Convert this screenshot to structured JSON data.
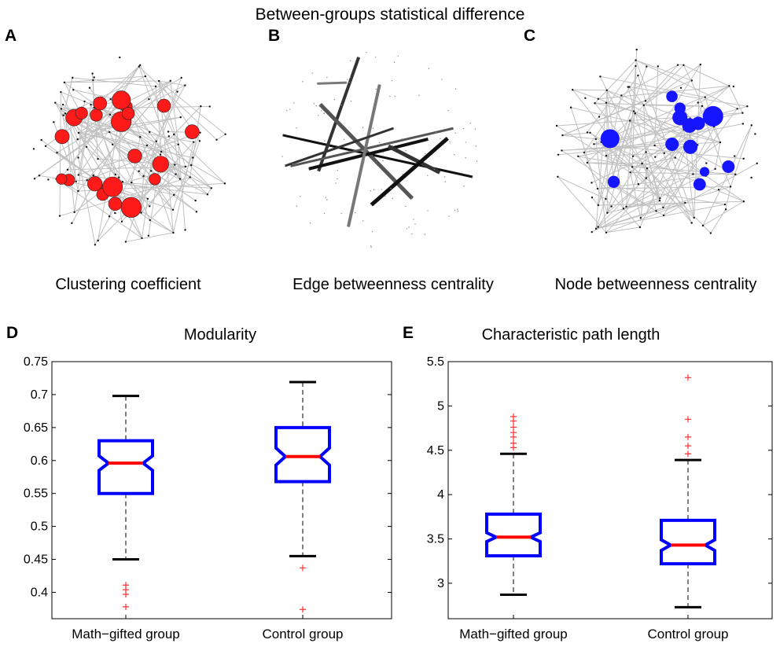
{
  "figure_title": "Between-groups statistical difference",
  "colors": {
    "edge_gray": "#c0c0c0",
    "node_black": "#111111",
    "node_red": "#ff1a1a",
    "node_blue": "#1515ff",
    "box_blue": "#0000ff",
    "median_red": "#ff0000",
    "whisker_black": "#000000",
    "outlier_red": "#ff3030"
  },
  "networks": [
    {
      "label": "A",
      "caption": "Clustering coefficient",
      "highlight_color": "red",
      "icon": "brain-network-graph-icon"
    },
    {
      "label": "B",
      "caption": "Edge betweenness centrality",
      "highlight_color": "dark-gray-edges",
      "icon": "brain-network-graph-icon"
    },
    {
      "label": "C",
      "caption": "Node betweenness centrality",
      "highlight_color": "blue",
      "icon": "brain-network-graph-icon"
    }
  ],
  "chart_data": [
    {
      "type": "boxplot",
      "panel": "D",
      "title": "Modularity",
      "xlabel": "",
      "ylabel": "",
      "ylim": [
        0.36,
        0.75
      ],
      "yticks": [
        "0.4",
        "0.45",
        "0.5",
        "0.55",
        "0.6",
        "0.65",
        "0.7",
        "0.75"
      ],
      "categories": [
        "Math−gifted group",
        "Control group"
      ],
      "boxes": [
        {
          "whisker_low": 0.45,
          "q1": 0.55,
          "median": 0.596,
          "q3": 0.63,
          "whisker_high": 0.698,
          "notch_low": 0.585,
          "notch_high": 0.607,
          "outliers": [
            0.411,
            0.404,
            0.397,
            0.378
          ]
        },
        {
          "whisker_low": 0.455,
          "q1": 0.568,
          "median": 0.606,
          "q3": 0.65,
          "whisker_high": 0.719,
          "notch_low": 0.593,
          "notch_high": 0.619,
          "outliers": [
            0.437,
            0.374
          ]
        }
      ]
    },
    {
      "type": "boxplot",
      "panel": "E",
      "title": "Characteristic path length",
      "xlabel": "",
      "ylabel": "",
      "ylim": [
        2.6,
        5.5
      ],
      "yticks": [
        "3",
        "3.5",
        "4",
        "4.5",
        "5",
        "5.5"
      ],
      "categories": [
        "Math−gifted group",
        "Control group"
      ],
      "boxes": [
        {
          "whisker_low": 2.87,
          "q1": 3.31,
          "median": 3.52,
          "q3": 3.78,
          "whisker_high": 4.46,
          "notch_low": 3.47,
          "notch_high": 3.57,
          "outliers": [
            4.88,
            4.83,
            4.76,
            4.7,
            4.65,
            4.58,
            4.53
          ]
        },
        {
          "whisker_low": 2.73,
          "q1": 3.22,
          "median": 3.43,
          "q3": 3.71,
          "whisker_high": 4.39,
          "notch_low": 3.37,
          "notch_high": 3.49,
          "outliers": [
            5.32,
            4.85,
            4.65,
            4.55,
            4.46
          ]
        }
      ]
    }
  ]
}
